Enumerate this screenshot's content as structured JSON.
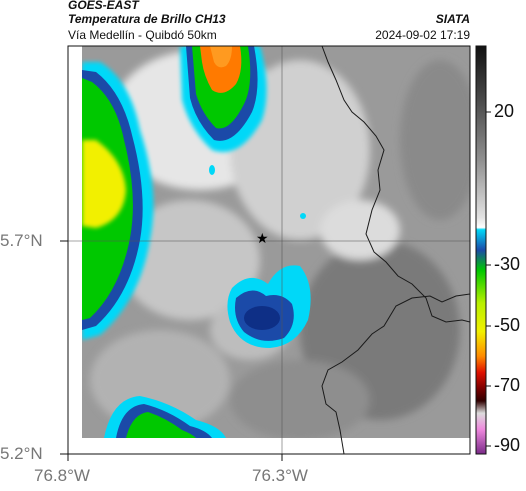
{
  "header": {
    "satellite": "GOES-EAST",
    "product": "Temperatura de Brillo CH13",
    "route": "Vía Medellín - Quibdó 50km",
    "source": "SIATA",
    "timestamp": "2024-09-02 17:19"
  },
  "axes": {
    "lat_labels": [
      "5.7°N",
      "5.2°N"
    ],
    "lon_labels": [
      "76.8°W",
      "76.3°W"
    ]
  },
  "colorbar": {
    "ticks": [
      "20",
      "-30",
      "-50",
      "-70",
      "-90"
    ],
    "colors": [
      "#111111",
      "#444444",
      "#888888",
      "#cccccc",
      "#ffffff",
      "#00c8f0",
      "#1b4aa8",
      "#00e000",
      "#f2f000",
      "#ff7a00",
      "#a00000",
      "#dd77cc",
      "#7a2a88"
    ]
  },
  "map": {
    "marker": "★"
  }
}
